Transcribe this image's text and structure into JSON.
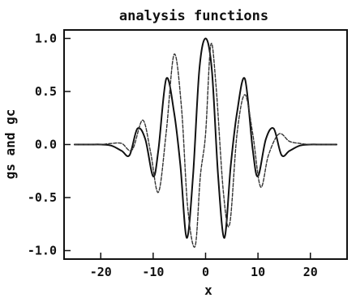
{
  "chart_data": {
    "type": "line",
    "title": "analysis functions",
    "xlabel": "x",
    "ylabel": "gs and gc",
    "xlim": [
      -27,
      27
    ],
    "ylim": [
      -1.08,
      1.08
    ],
    "xticks": [
      -20,
      -10,
      0,
      10,
      20
    ],
    "xtick_labels": [
      "-20",
      "-10",
      "0",
      "10",
      "20"
    ],
    "yticks": [
      1.0,
      0.5,
      0.0,
      -0.5,
      -1.0
    ],
    "ytick_labels": [
      "1.0",
      "0.5",
      "0.0",
      "-0.5",
      "-1.0"
    ],
    "grid": false,
    "series": [
      {
        "style": "solid",
        "color": "#111111",
        "x": [
          -25,
          -22,
          -20,
          -18,
          -16,
          -14.5,
          -13,
          -11.5,
          -10,
          -9,
          -7.5,
          -6,
          -4.8,
          -3.6,
          -2.4,
          -1.2,
          0,
          1.2,
          2.4,
          3.6,
          4.8,
          6,
          7.5,
          9,
          10,
          11.5,
          13,
          14.5,
          16,
          18,
          20,
          22,
          25
        ],
        "y": [
          0,
          0,
          0,
          -0.01,
          -0.06,
          -0.1,
          0.15,
          0.05,
          -0.3,
          -0.05,
          0.62,
          0.3,
          -0.2,
          -0.88,
          -0.3,
          0.7,
          1.0,
          0.7,
          -0.3,
          -0.88,
          -0.2,
          0.3,
          0.62,
          -0.05,
          -0.3,
          0.05,
          0.15,
          -0.1,
          -0.06,
          -0.01,
          0,
          0,
          0
        ]
      },
      {
        "style": "dashed",
        "color": "#333333",
        "x": [
          -25,
          -22,
          -20,
          -18,
          -16,
          -14,
          -12,
          -10.5,
          -9,
          -7.5,
          -6,
          -4.6,
          -3.4,
          -2,
          -1,
          0,
          1,
          2,
          3.4,
          4.6,
          6,
          7.5,
          9,
          10.5,
          12,
          14,
          16,
          18,
          20,
          22,
          25
        ],
        "y": [
          0,
          0,
          0,
          0.01,
          0.01,
          -0.05,
          0.23,
          -0.07,
          -0.45,
          0.12,
          0.85,
          0.35,
          -0.6,
          -0.96,
          -0.3,
          0.1,
          0.94,
          0.55,
          -0.45,
          -0.75,
          0.1,
          0.47,
          0.1,
          -0.4,
          -0.1,
          0.1,
          0.03,
          0.01,
          0,
          0,
          0
        ]
      }
    ]
  }
}
